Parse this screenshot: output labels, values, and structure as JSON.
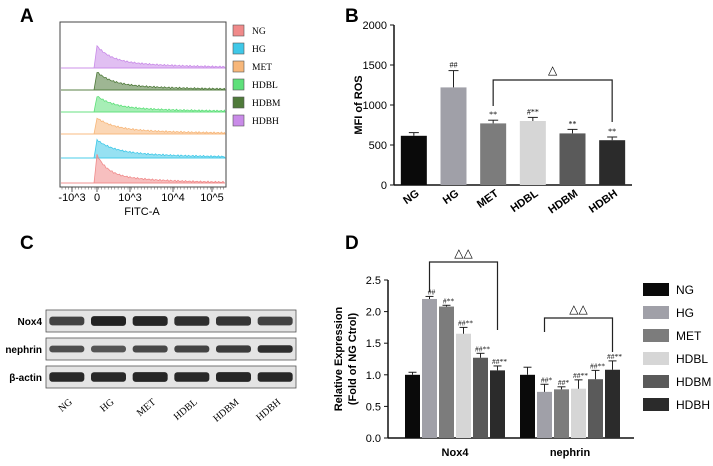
{
  "panels": {
    "a": "A",
    "b": "B",
    "c": "C",
    "d": "D"
  },
  "flow": {
    "xlabel": "FITC-A",
    "ticks": [
      "-10^3",
      "0",
      "10^3",
      "10^4",
      "10^5"
    ],
    "legend": [
      {
        "label": "NG",
        "color": "#f08a8a"
      },
      {
        "label": "HG",
        "color": "#3fc8e8"
      },
      {
        "label": "MET",
        "color": "#f7b77a"
      },
      {
        "label": "HDBL",
        "color": "#5ee07a"
      },
      {
        "label": "HDBM",
        "color": "#4f7a3a"
      },
      {
        "label": "HDBH",
        "color": "#c98be8"
      }
    ]
  },
  "blot": {
    "proteins": [
      "Nox4",
      "nephrin",
      "β-actin"
    ],
    "lanes": [
      "NG",
      "HG",
      "MET",
      "HDBL",
      "HDBM",
      "HDBH"
    ]
  },
  "chart_data": [
    {
      "type": "bar",
      "title": "",
      "ylabel": "MFI of ROS",
      "xlabel": "",
      "ylim": [
        0,
        2000
      ],
      "yticks": [
        "0",
        "500",
        "1000",
        "1500",
        "2000"
      ],
      "categories": [
        "NG",
        "HG",
        "MET",
        "HDBL",
        "HDBM",
        "HDBH"
      ],
      "values": [
        615,
        1220,
        770,
        800,
        645,
        560
      ],
      "errors": [
        40,
        210,
        40,
        45,
        50,
        40
      ],
      "colors": [
        "#0a0a0a",
        "#a0a0a8",
        "#7c7c7c",
        "#d6d6d6",
        "#5a5a5a",
        "#2b2b2b"
      ],
      "annotations": [
        "",
        "##",
        "**",
        "#**",
        "**",
        "**"
      ],
      "bracket": {
        "from": "MET",
        "to": "HDBH",
        "label": "△"
      }
    },
    {
      "type": "bar",
      "ylabel": "Relative Expression",
      "ylabel2": "(Fold of NG Ctrol)",
      "ylim": [
        0,
        2.5
      ],
      "yticks": [
        "0.0",
        "0.5",
        "1.0",
        "1.5",
        "2.0",
        "2.5"
      ],
      "categories": [
        "Nox4",
        "nephrin"
      ],
      "series": [
        {
          "name": "NG",
          "color": "#0a0a0a",
          "values": [
            1.0,
            1.0
          ],
          "errors": [
            0.04,
            0.12
          ],
          "annotations": [
            "",
            ""
          ]
        },
        {
          "name": "HG",
          "color": "#a0a0a8",
          "values": [
            2.2,
            0.73
          ],
          "errors": [
            0.04,
            0.12
          ],
          "annotations": [
            "##",
            "##*"
          ]
        },
        {
          "name": "MET",
          "color": "#7c7c7c",
          "values": [
            2.08,
            0.77
          ],
          "errors": [
            0.02,
            0.04
          ],
          "annotations": [
            "#**",
            "##*"
          ]
        },
        {
          "name": "HDBL",
          "color": "#d6d6d6",
          "values": [
            1.65,
            0.78
          ],
          "errors": [
            0.1,
            0.14
          ],
          "annotations": [
            "##**",
            "##**"
          ]
        },
        {
          "name": "HDBM",
          "color": "#5a5a5a",
          "values": [
            1.27,
            0.93
          ],
          "errors": [
            0.07,
            0.14
          ],
          "annotations": [
            "##**",
            "##**"
          ]
        },
        {
          "name": "HDBH",
          "color": "#2b2b2b",
          "values": [
            1.07,
            1.08
          ],
          "errors": [
            0.07,
            0.14
          ],
          "annotations": [
            "##**",
            "##**"
          ]
        }
      ],
      "brackets": [
        {
          "group": "Nox4",
          "from": "HG",
          "to": "HDBH",
          "label": "△△"
        },
        {
          "group": "nephrin",
          "from": "HG",
          "to": "HDBH",
          "label": "△△"
        }
      ]
    }
  ]
}
